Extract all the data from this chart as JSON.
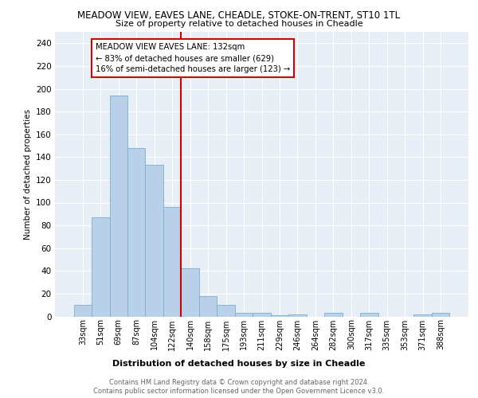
{
  "title1": "MEADOW VIEW, EAVES LANE, CHEADLE, STOKE-ON-TRENT, ST10 1TL",
  "title2": "Size of property relative to detached houses in Cheadle",
  "xlabel": "Distribution of detached houses by size in Cheadle",
  "ylabel": "Number of detached properties",
  "categories": [
    "33sqm",
    "51sqm",
    "69sqm",
    "87sqm",
    "104sqm",
    "122sqm",
    "140sqm",
    "158sqm",
    "175sqm",
    "193sqm",
    "211sqm",
    "229sqm",
    "246sqm",
    "264sqm",
    "282sqm",
    "300sqm",
    "317sqm",
    "335sqm",
    "353sqm",
    "371sqm",
    "388sqm"
  ],
  "values": [
    10,
    87,
    194,
    148,
    133,
    96,
    42,
    18,
    10,
    3,
    3,
    1,
    2,
    0,
    3,
    0,
    3,
    0,
    0,
    2,
    3
  ],
  "bar_color": "#b8d0e8",
  "bar_edge_color": "#7aadd4",
  "vline_color": "#cc0000",
  "annotation_line1": "MEADOW VIEW EAVES LANE: 132sqm",
  "annotation_line2": "← 83% of detached houses are smaller (629)",
  "annotation_line3": "16% of semi-detached houses are larger (123) →",
  "annotation_box_color": "#ffffff",
  "annotation_box_edge_color": "#cc0000",
  "ylim": [
    0,
    250
  ],
  "yticks": [
    0,
    20,
    40,
    60,
    80,
    100,
    120,
    140,
    160,
    180,
    200,
    220,
    240
  ],
  "footer1": "Contains HM Land Registry data © Crown copyright and database right 2024.",
  "footer2": "Contains public sector information licensed under the Open Government Licence v3.0.",
  "plot_bg_color": "#e8eef5",
  "fig_bg_color": "#ffffff",
  "vline_index": 6
}
